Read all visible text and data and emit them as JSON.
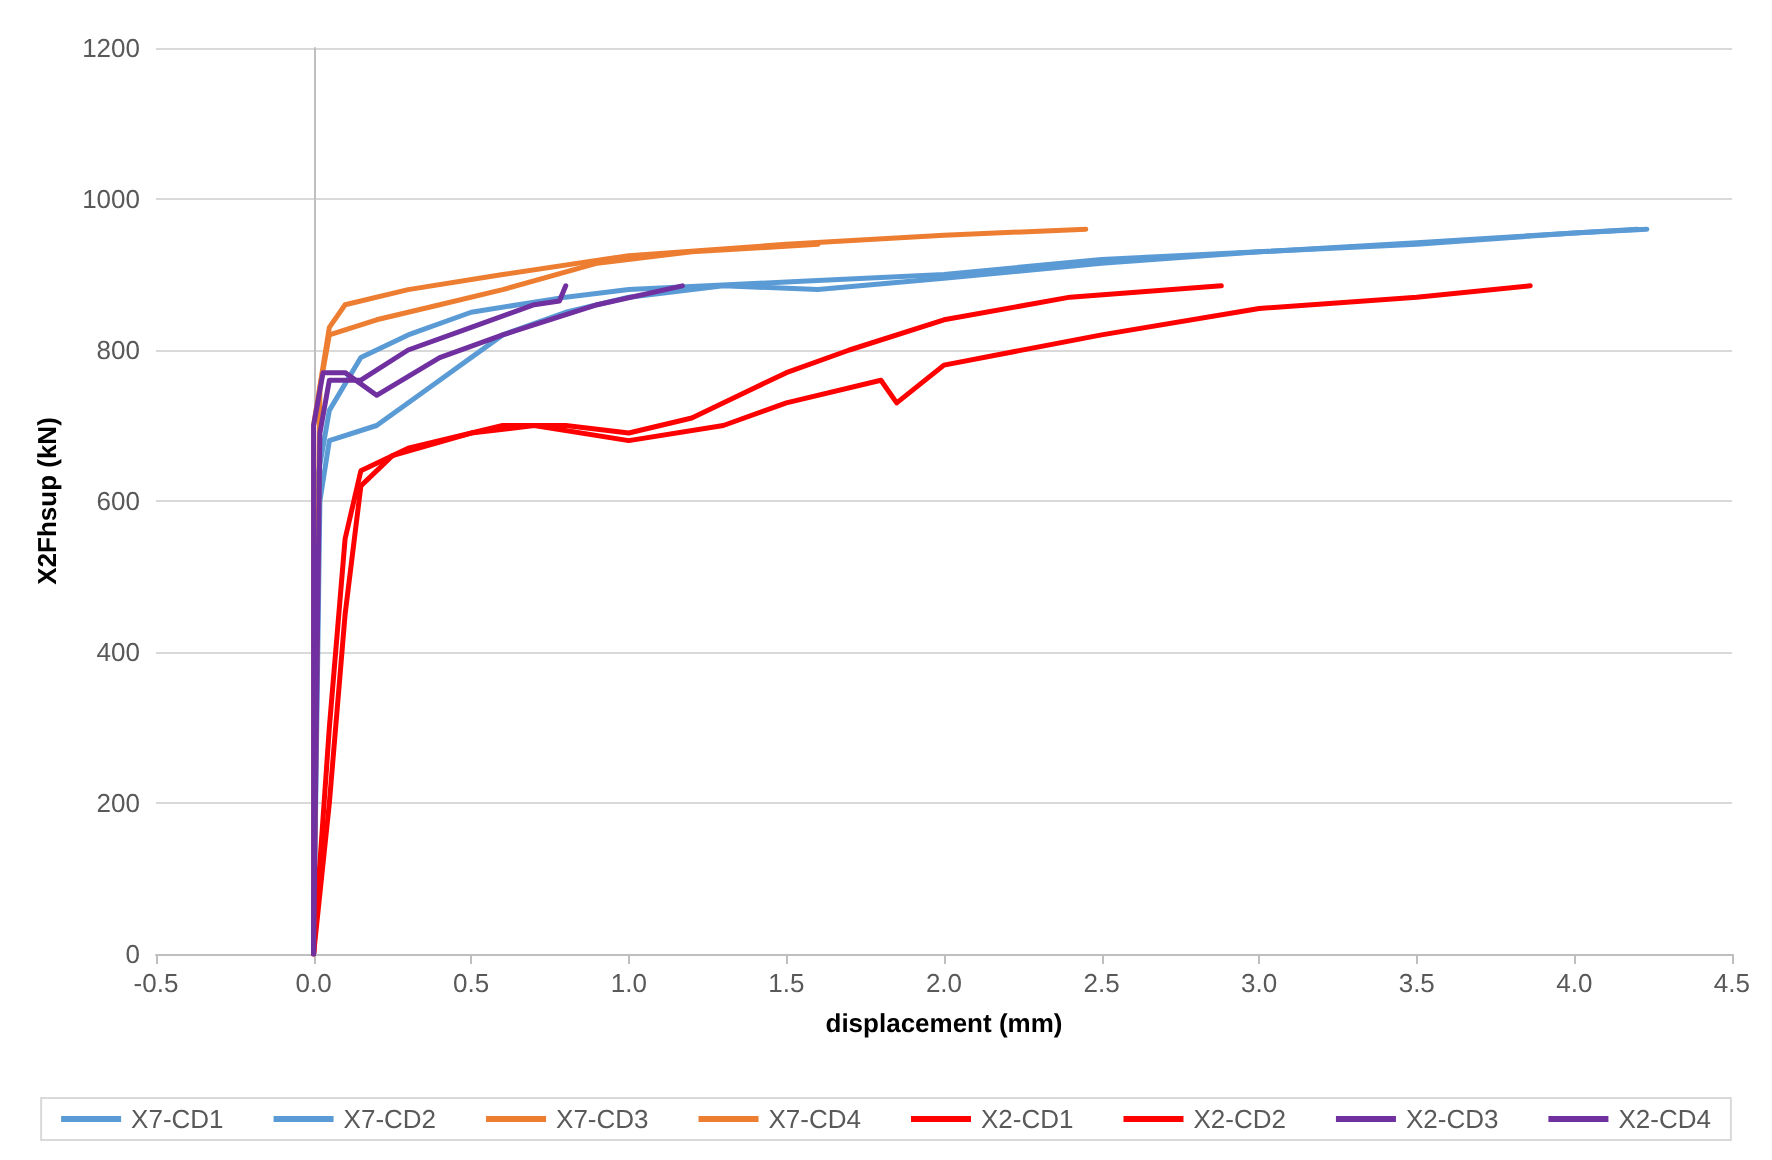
{
  "chart_data": {
    "type": "line",
    "xlabel": "displacement (mm)",
    "ylabel": "X2Fhsup (kN)",
    "xlim": [
      -0.5,
      4.5
    ],
    "ylim": [
      0,
      1200
    ],
    "xticks": [
      -0.5,
      {
        "value": 0,
        "label": "0.0"
      },
      0.5,
      {
        "value": 1,
        "label": "1.0"
      },
      1.5,
      {
        "value": 2,
        "label": "2.0"
      },
      2.5,
      {
        "value": 3,
        "label": "3.0"
      },
      3.5,
      {
        "value": 4,
        "label": "4.0"
      },
      4.5
    ],
    "yticks": [
      0,
      200,
      400,
      600,
      800,
      1000,
      1200
    ],
    "grid": "y",
    "legend": "bottom",
    "marker": "none",
    "line_style": "solid",
    "series": [
      {
        "name": "X7-CD1",
        "color": "#5b9bd5",
        "x": [
          0,
          0,
          0.05,
          0.15,
          0.3,
          0.5,
          0.8,
          1.0,
          1.5,
          2.0,
          2.5,
          3.0,
          3.5,
          4.0,
          4.23
        ],
        "values": [
          0,
          600,
          720,
          790,
          820,
          850,
          870,
          880,
          890,
          900,
          920,
          930,
          940,
          955,
          960
        ]
      },
      {
        "name": "X7-CD2",
        "color": "#5b9bd5",
        "x": [
          0,
          0.02,
          0.05,
          0.2,
          0.4,
          0.6,
          0.8,
          1.0,
          1.3,
          1.6,
          2.0,
          2.5,
          3.0,
          3.5,
          4.0,
          4.2
        ],
        "values": [
          0,
          600,
          680,
          700,
          760,
          820,
          850,
          870,
          885,
          880,
          895,
          915,
          930,
          942,
          955,
          960
        ]
      },
      {
        "name": "X7-CD3",
        "color": "#ed7d31",
        "x": [
          0,
          0,
          0.05,
          0.1,
          0.3,
          0.6,
          1.0,
          1.5,
          2.0,
          2.45
        ],
        "values": [
          0,
          700,
          830,
          860,
          880,
          900,
          925,
          940,
          952,
          960
        ]
      },
      {
        "name": "X7-CD4",
        "color": "#ed7d31",
        "x": [
          0,
          0.02,
          0.05,
          0.2,
          0.4,
          0.6,
          0.9,
          1.2,
          1.6
        ],
        "values": [
          0,
          750,
          820,
          840,
          860,
          880,
          915,
          930,
          940
        ]
      },
      {
        "name": "X2-CD1",
        "color": "#ff0000",
        "x": [
          0,
          0.05,
          0.1,
          0.15,
          0.3,
          0.6,
          0.8,
          1.0,
          1.2,
          1.4,
          1.5,
          1.7,
          2.0,
          2.4,
          2.88
        ],
        "values": [
          0,
          300,
          550,
          640,
          670,
          700,
          700,
          690,
          710,
          750,
          770,
          800,
          840,
          870,
          885
        ]
      },
      {
        "name": "X2-CD2",
        "color": "#ff0000",
        "x": [
          0,
          0.05,
          0.1,
          0.15,
          0.25,
          0.5,
          0.7,
          1.0,
          1.3,
          1.5,
          1.8,
          1.85,
          2.0,
          2.5,
          3.0,
          3.5,
          3.86
        ],
        "values": [
          0,
          200,
          450,
          620,
          660,
          690,
          700,
          680,
          700,
          730,
          760,
          730,
          780,
          820,
          855,
          870,
          885
        ]
      },
      {
        "name": "X2-CD3",
        "color": "#7030a0",
        "x": [
          0,
          0,
          0.03,
          0.1,
          0.2,
          0.4,
          0.6,
          0.9,
          1.17
        ],
        "values": [
          0,
          700,
          770,
          770,
          740,
          790,
          820,
          860,
          885
        ]
      },
      {
        "name": "X2-CD4",
        "color": "#7030a0",
        "x": [
          0,
          0.02,
          0.05,
          0.15,
          0.3,
          0.5,
          0.7,
          0.78,
          0.8
        ],
        "values": [
          0,
          690,
          760,
          760,
          800,
          830,
          860,
          865,
          885
        ]
      }
    ]
  }
}
